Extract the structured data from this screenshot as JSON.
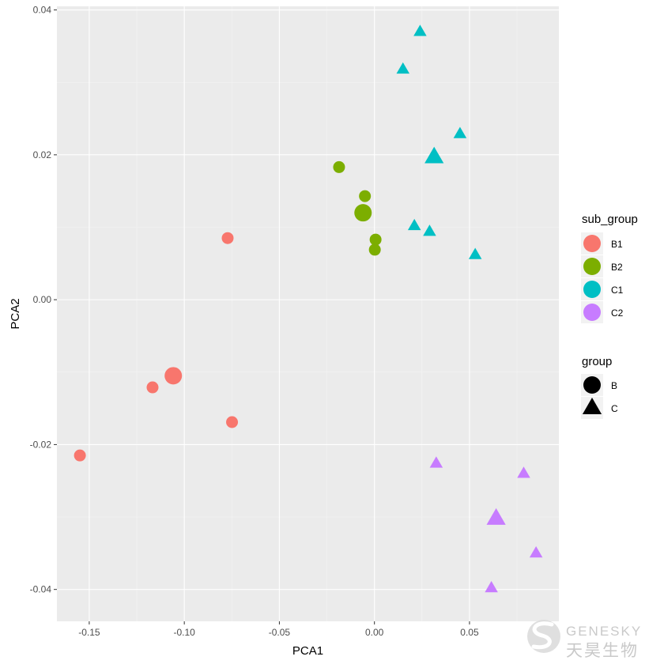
{
  "chart_data": {
    "type": "scatter",
    "title": "",
    "xlabel": "PCA1",
    "ylabel": "PCA2",
    "xlim": [
      -0.167,
      0.097
    ],
    "ylim": [
      -0.0444,
      0.0405
    ],
    "x_ticks": [
      -0.15,
      -0.1,
      -0.05,
      0,
      0.05
    ],
    "x_tick_labels": [
      "-0.15",
      "-0.10",
      "-0.05",
      "0.00",
      "0.05"
    ],
    "y_ticks": [
      -0.04,
      -0.02,
      0,
      0.02,
      0.04
    ],
    "y_tick_labels": [
      "-0.04",
      "-0.02",
      "0.00",
      "0.02",
      "0.04"
    ],
    "grid": true,
    "legend_position": "right",
    "legends": [
      {
        "title": "sub_group",
        "entries": [
          {
            "label": "B1",
            "color": "#F8766D",
            "shape": "circle"
          },
          {
            "label": "B2",
            "color": "#7CAE00",
            "shape": "circle"
          },
          {
            "label": "C1",
            "color": "#00BFC4",
            "shape": "circle"
          },
          {
            "label": "C2",
            "color": "#C77CFF",
            "shape": "circle"
          }
        ]
      },
      {
        "title": "group",
        "entries": [
          {
            "label": "B",
            "color": "#000000",
            "shape": "circle"
          },
          {
            "label": "C",
            "color": "#000000",
            "shape": "triangle"
          }
        ]
      }
    ],
    "series": [
      {
        "name": "B1",
        "group": "B",
        "color": "#F8766D",
        "shape": "circle",
        "points": [
          {
            "x": -0.0772,
            "y": 0.0085
          },
          {
            "x": -0.1058,
            "y": -0.0105,
            "centroid": true
          },
          {
            "x": -0.1167,
            "y": -0.0121
          },
          {
            "x": -0.0749,
            "y": -0.0169
          },
          {
            "x": -0.1549,
            "y": -0.0215
          }
        ]
      },
      {
        "name": "B2",
        "group": "B",
        "color": "#7CAE00",
        "shape": "circle",
        "points": [
          {
            "x": -0.0186,
            "y": 0.0183
          },
          {
            "x": -0.005,
            "y": 0.0143
          },
          {
            "x": -0.006,
            "y": 0.012,
            "centroid": true
          },
          {
            "x": 0.0006,
            "y": 0.0083
          },
          {
            "x": 0.0002,
            "y": 0.0069
          }
        ]
      },
      {
        "name": "C1",
        "group": "C",
        "color": "#00BFC4",
        "shape": "triangle",
        "points": [
          {
            "x": 0.024,
            "y": 0.037
          },
          {
            "x": 0.015,
            "y": 0.0318
          },
          {
            "x": 0.045,
            "y": 0.0229
          },
          {
            "x": 0.0314,
            "y": 0.0197,
            "centroid": true
          },
          {
            "x": 0.021,
            "y": 0.0102
          },
          {
            "x": 0.029,
            "y": 0.0094
          },
          {
            "x": 0.053,
            "y": 0.0062
          }
        ]
      },
      {
        "name": "C2",
        "group": "C",
        "color": "#C77CFF",
        "shape": "triangle",
        "points": [
          {
            "x": 0.0325,
            "y": -0.0226
          },
          {
            "x": 0.0785,
            "y": -0.024
          },
          {
            "x": 0.064,
            "y": -0.0302,
            "centroid": true
          },
          {
            "x": 0.085,
            "y": -0.035
          },
          {
            "x": 0.0615,
            "y": -0.0398
          }
        ]
      }
    ]
  },
  "watermark": {
    "latin": "GENESKY",
    "chinese": "天昊生物"
  },
  "colors": {
    "panel": "#EBEBEB",
    "grid_major": "#FFFFFF",
    "tick_text": "#4D4D4D"
  }
}
